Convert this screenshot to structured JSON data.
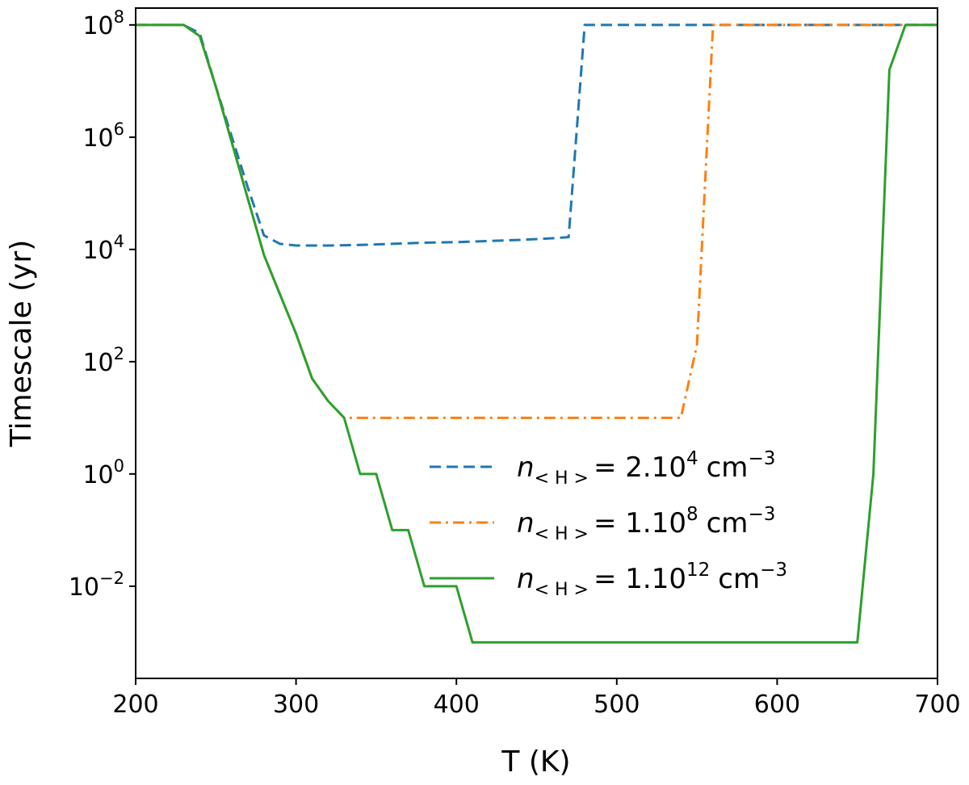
{
  "chart_data": {
    "type": "line",
    "xlabel": "T (K)",
    "ylabel": "Timescale (yr)",
    "xlim": [
      200,
      700
    ],
    "ylim_exponent": [
      -3.35,
      8.3
    ],
    "y_scale": "log",
    "x_ticks": [
      {
        "value": 200,
        "label": "200"
      },
      {
        "value": 300,
        "label": "300"
      },
      {
        "value": 400,
        "label": "400"
      },
      {
        "value": 500,
        "label": "500"
      },
      {
        "value": 600,
        "label": "600"
      },
      {
        "value": 700,
        "label": "700"
      }
    ],
    "y_ticks": [
      {
        "exp": 8,
        "base": "10",
        "power": "8"
      },
      {
        "exp": 6,
        "base": "10",
        "power": "6"
      },
      {
        "exp": 4,
        "base": "10",
        "power": "4"
      },
      {
        "exp": 2,
        "base": "10",
        "power": "2"
      },
      {
        "exp": 0,
        "base": "10",
        "power": "0"
      },
      {
        "exp": -2,
        "base": "10",
        "power": "−2"
      }
    ],
    "grid": false,
    "legend_position": "center-right",
    "series": [
      {
        "color": "#1f77b4",
        "dash": "dashed",
        "legend": {
          "n": "n",
          "sub": "< H >",
          "eq": "= 2.10",
          "pow": "4",
          "unit": "cm",
          "unit_pow": "−3"
        },
        "x": [
          200,
          230,
          240,
          250,
          260,
          270,
          280,
          290,
          300,
          320,
          340,
          360,
          380,
          400,
          420,
          440,
          460,
          470,
          480,
          500,
          600,
          700
        ],
        "exp": [
          8,
          8,
          7.85,
          6.9,
          6.0,
          5.1,
          4.25,
          4.1,
          4.07,
          4.07,
          4.08,
          4.1,
          4.12,
          4.13,
          4.15,
          4.17,
          4.2,
          4.22,
          8,
          8,
          8,
          8
        ]
      },
      {
        "color": "#ff7f0e",
        "dash": "dashdot",
        "legend": {
          "n": "n",
          "sub": "< H >",
          "eq": "= 1.10",
          "pow": "8",
          "unit": "cm",
          "unit_pow": "−3"
        },
        "x": [
          200,
          230,
          240,
          250,
          260,
          270,
          280,
          290,
          300,
          310,
          320,
          330,
          400,
          500,
          540,
          550,
          560,
          600,
          700
        ],
        "exp": [
          8,
          8,
          7.8,
          6.9,
          5.9,
          4.9,
          3.9,
          3.2,
          2.5,
          1.7,
          1.3,
          1,
          1,
          1,
          1,
          2.3,
          8,
          8,
          8
        ]
      },
      {
        "color": "#2ca02c",
        "dash": "solid",
        "legend": {
          "n": "n",
          "sub": "< H >",
          "eq": "= 1.10",
          "pow": "12",
          "unit": "cm",
          "unit_pow": "−3"
        },
        "x": [
          200,
          230,
          240,
          250,
          260,
          270,
          280,
          290,
          300,
          310,
          320,
          330,
          340,
          350,
          360,
          370,
          380,
          400,
          410,
          500,
          600,
          650,
          660,
          670,
          680,
          700
        ],
        "exp": [
          8,
          8,
          7.8,
          6.9,
          5.9,
          4.9,
          3.9,
          3.2,
          2.5,
          1.7,
          1.3,
          1,
          0,
          0,
          -1,
          -1,
          -2,
          -2,
          -3,
          -3,
          -3,
          -3,
          0,
          7.2,
          8,
          8
        ]
      }
    ]
  }
}
